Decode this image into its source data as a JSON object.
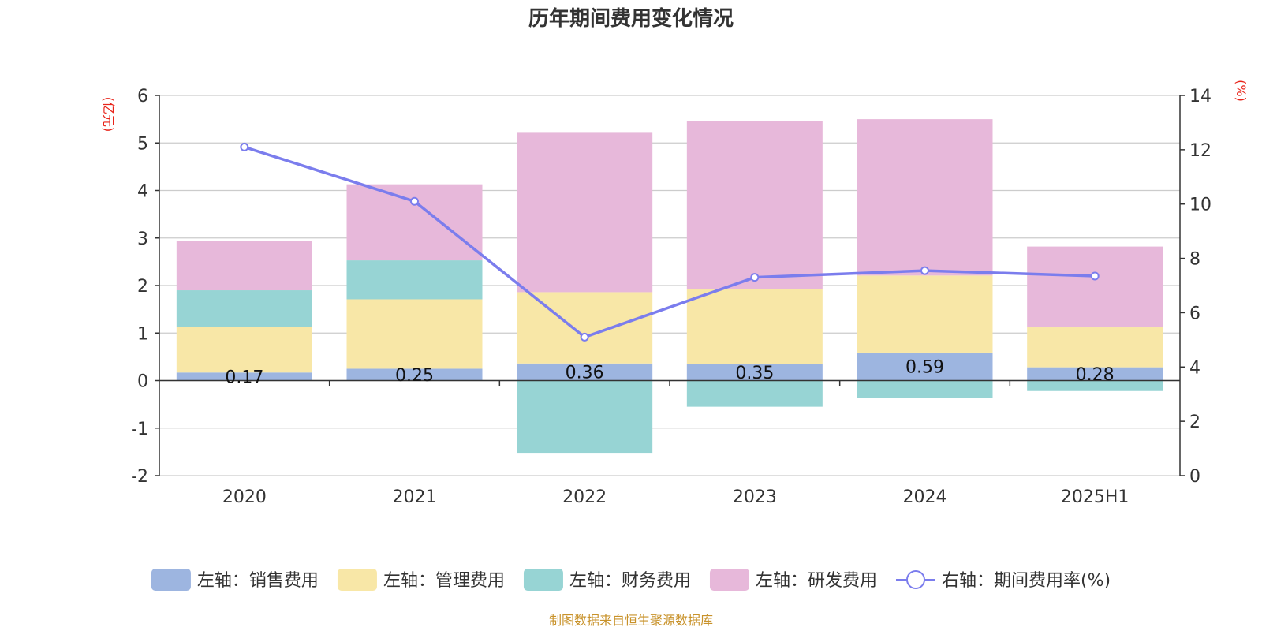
{
  "chart_data": {
    "type": "bar",
    "title": "历年期间费用变化情况",
    "categories": [
      "2020",
      "2021",
      "2022",
      "2023",
      "2024",
      "2025H1"
    ],
    "left_axis": {
      "unit_label": "(亿元)",
      "ylim": [
        -2,
        6
      ],
      "ticks": [
        "6",
        "5",
        "4",
        "3",
        "2",
        "1",
        "0",
        "-1",
        "-2"
      ]
    },
    "right_axis": {
      "unit_label": "(%)",
      "ylim": [
        0,
        14
      ],
      "ticks": [
        "14",
        "12",
        "10",
        "8",
        "6",
        "4",
        "2",
        "0"
      ]
    },
    "grid": true,
    "stacked": true,
    "series": [
      {
        "name": "左轴：销售费用",
        "axis": "left",
        "type": "bar",
        "color": "#9db5e0",
        "values": [
          0.17,
          0.25,
          0.36,
          0.35,
          0.59,
          0.28
        ],
        "labels": [
          "0.17",
          "0.25",
          "0.36",
          "0.35",
          "0.59",
          "0.28"
        ]
      },
      {
        "name": "左轴：管理费用",
        "axis": "left",
        "type": "bar",
        "color": "#f8e7a7",
        "values": [
          0.96,
          1.46,
          1.5,
          1.58,
          1.62,
          0.84
        ]
      },
      {
        "name": "左轴：财务费用",
        "axis": "left",
        "type": "bar",
        "color": "#97d4d4",
        "values": [
          0.77,
          0.82,
          -1.52,
          -0.55,
          -0.37,
          -0.22
        ]
      },
      {
        "name": "左轴：研发费用",
        "axis": "left",
        "type": "bar",
        "color": "#e7b8da",
        "values": [
          1.04,
          1.6,
          3.37,
          3.53,
          3.29,
          1.7
        ]
      },
      {
        "name": "右轴：期间费用率(%)",
        "axis": "right",
        "type": "line",
        "color": "#7b7ded",
        "values": [
          12.1,
          10.1,
          5.1,
          7.3,
          7.55,
          7.35
        ]
      }
    ],
    "legend_position": "bottom",
    "source_note": "制图数据来自恒生聚源数据库"
  }
}
